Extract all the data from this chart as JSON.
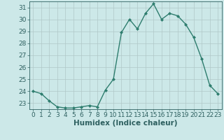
{
  "x": [
    0,
    1,
    2,
    3,
    4,
    5,
    6,
    7,
    8,
    9,
    10,
    11,
    12,
    13,
    14,
    15,
    16,
    17,
    18,
    19,
    20,
    21,
    22,
    23
  ],
  "y": [
    24.0,
    23.8,
    23.2,
    22.7,
    22.6,
    22.6,
    22.7,
    22.8,
    22.7,
    24.1,
    25.0,
    28.9,
    30.0,
    29.2,
    30.5,
    31.3,
    30.0,
    30.5,
    30.3,
    29.6,
    28.5,
    26.7,
    24.5,
    23.8
  ],
  "xlabel": "Humidex (Indice chaleur)",
  "xlim": [
    -0.5,
    23.5
  ],
  "ylim": [
    22.5,
    31.5
  ],
  "yticks": [
    23,
    24,
    25,
    26,
    27,
    28,
    29,
    30,
    31
  ],
  "xticks": [
    0,
    1,
    2,
    3,
    4,
    5,
    6,
    7,
    8,
    9,
    10,
    11,
    12,
    13,
    14,
    15,
    16,
    17,
    18,
    19,
    20,
    21,
    22,
    23
  ],
  "line_color": "#2e7d6e",
  "marker": "D",
  "marker_size": 2.0,
  "bg_color": "#cce8e8",
  "grid_color": "#b0c8c8",
  "label_color": "#2e6060",
  "tick_color": "#2e6060",
  "line_width": 1.0,
  "tick_fontsize": 6.5,
  "xlabel_fontsize": 7.5,
  "xlabel_bold": true
}
